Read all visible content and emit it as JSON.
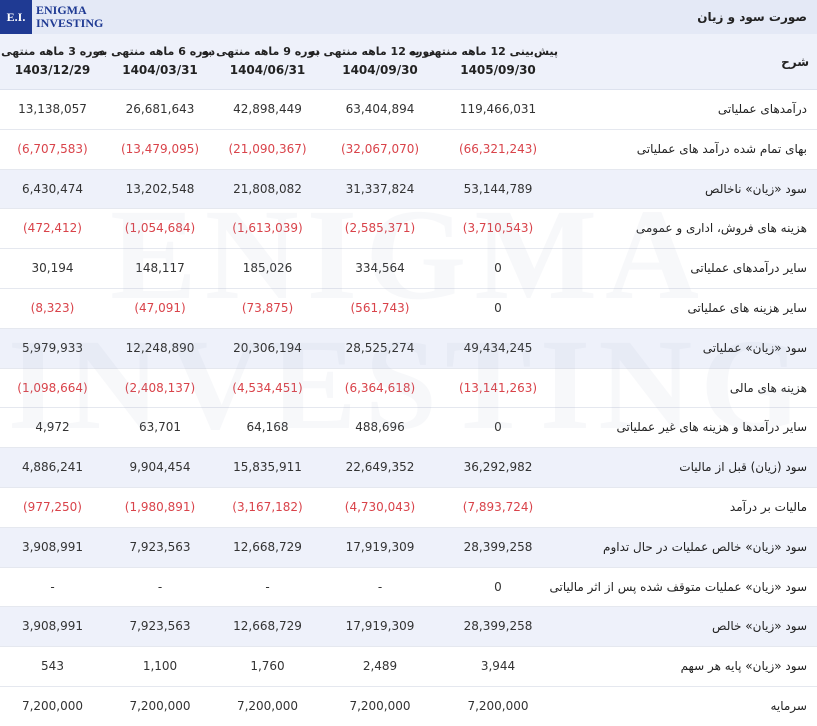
{
  "logo": {
    "mark": "E.I.",
    "line1": "ENIGMA",
    "line2": "INVESTING"
  },
  "page_title": "صورت سود و زیان",
  "watermark": "ENIGMA INVESTING",
  "header": {
    "description_label": "شرح",
    "columns": [
      {
        "line1": "پیش‌بینی 12 ماهه منتهی به",
        "line2": "1405/09/30"
      },
      {
        "line1": "دوره 12 ماهه منتهی به",
        "line2": "1404/09/30"
      },
      {
        "line1": "دوره 9 ماهه منتهی به",
        "line2": "1404/06/31"
      },
      {
        "line1": "دوره 6 ماهه منتهی به",
        "line2": "1404/03/31"
      },
      {
        "line1": "دوره 3 ماهه منتهی به",
        "line2": "1403/12/29"
      }
    ]
  },
  "colors": {
    "negative": "#d9434a",
    "shade": "#eef1fa",
    "brand": "#1f3a93"
  },
  "rows": [
    {
      "label": "درآمدهای عملیاتی",
      "shade": false,
      "values": [
        "119,466,031",
        "63,404,894",
        "42,898,449",
        "26,681,643",
        "13,138,057"
      ]
    },
    {
      "label": "بهای تمام شده درآمد های عملیاتی",
      "shade": false,
      "values": [
        "(66,321,243)",
        "(32,067,070)",
        "(21,090,367)",
        "(13,479,095)",
        "(6,707,583)"
      ]
    },
    {
      "label": "سود «زیان» ناخالص",
      "shade": true,
      "values": [
        "53,144,789",
        "31,337,824",
        "21,808,082",
        "13,202,548",
        "6,430,474"
      ]
    },
    {
      "label": "هزینه های فروش، اداری و عمومی",
      "shade": false,
      "values": [
        "(3,710,543)",
        "(2,585,371)",
        "(1,613,039)",
        "(1,054,684)",
        "(472,412)"
      ]
    },
    {
      "label": "سایر درآمدهای عملیاتی",
      "shade": false,
      "values": [
        "0",
        "334,564",
        "185,026",
        "148,117",
        "30,194"
      ]
    },
    {
      "label": "سایر هزینه های عملیاتی",
      "shade": false,
      "values": [
        "0",
        "(561,743)",
        "(73,875)",
        "(47,091)",
        "(8,323)"
      ]
    },
    {
      "label": "سود «زیان» عملیاتی",
      "shade": true,
      "values": [
        "49,434,245",
        "28,525,274",
        "20,306,194",
        "12,248,890",
        "5,979,933"
      ]
    },
    {
      "label": "هزینه های مالی",
      "shade": false,
      "values": [
        "(13,141,263)",
        "(6,364,618)",
        "(4,534,451)",
        "(2,408,137)",
        "(1,098,664)"
      ]
    },
    {
      "label": "سایر درآمدها و هزینه های غیر عملیاتی",
      "shade": false,
      "values": [
        "0",
        "488,696",
        "64,168",
        "63,701",
        "4,972"
      ]
    },
    {
      "label": "سود (زیان) قبل از مالیات",
      "shade": true,
      "values": [
        "36,292,982",
        "22,649,352",
        "15,835,911",
        "9,904,454",
        "4,886,241"
      ]
    },
    {
      "label": "مالیات بر درآمد",
      "shade": false,
      "values": [
        "(7,893,724)",
        "(4,730,043)",
        "(3,167,182)",
        "(1,980,891)",
        "(977,250)"
      ]
    },
    {
      "label": "سود «زیان» خالص عملیات در حال تداوم",
      "shade": true,
      "values": [
        "28,399,258",
        "17,919,309",
        "12,668,729",
        "7,923,563",
        "3,908,991"
      ]
    },
    {
      "label": "سود «زیان» عملیات متوقف شده پس از اثر مالیاتی",
      "shade": false,
      "values": [
        "0",
        "-",
        "-",
        "-",
        "-"
      ]
    },
    {
      "label": "سود «زیان» خالص",
      "shade": true,
      "values": [
        "28,399,258",
        "17,919,309",
        "12,668,729",
        "7,923,563",
        "3,908,991"
      ]
    },
    {
      "label": "سود «زیان» پایه هر سهم",
      "shade": false,
      "values": [
        "3,944",
        "2,489",
        "1,760",
        "1,100",
        "543"
      ]
    },
    {
      "label": "سرمایه",
      "shade": false,
      "values": [
        "7,200,000",
        "7,200,000",
        "7,200,000",
        "7,200,000",
        "7,200,000"
      ]
    }
  ]
}
